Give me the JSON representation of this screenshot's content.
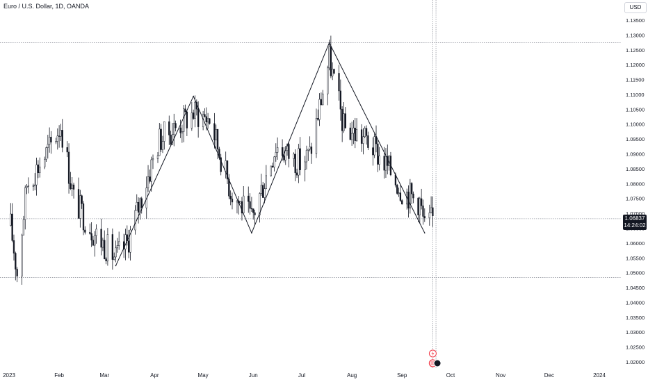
{
  "header": {
    "symbol_title": "Euro / U.S. Dollar, 1D, OANDA",
    "currency_label": "USD"
  },
  "price_tag": {
    "price": "1.06837",
    "countdown": "14:24:02"
  },
  "colors": {
    "candle": "#131722",
    "background": "#ffffff",
    "grid_line": "#9598a1",
    "zigzag": "#131722"
  },
  "chart_data": {
    "type": "candlestick",
    "title": "Euro / U.S. Dollar, 1D, OANDA",
    "xlabel": "",
    "ylabel": "",
    "grid": false,
    "y_axis_position": "right",
    "ylim": [
      1.0165,
      1.1385
    ],
    "xlim": [
      "2023-01-01",
      "2024-01-03"
    ],
    "y_ticks": [
      "1.02000",
      "1.02500",
      "1.03000",
      "1.03500",
      "1.04000",
      "1.04500",
      "1.05000",
      "1.05500",
      "1.06000",
      "1.06500",
      "1.07000",
      "1.07500",
      "1.08000",
      "1.08500",
      "1.09000",
      "1.09500",
      "1.10000",
      "1.10500",
      "1.11000",
      "1.11500",
      "1.12000",
      "1.12500",
      "1.13000",
      "1.13500"
    ],
    "x_ticks": [
      {
        "label": "2023",
        "date": "2023-01-01"
      },
      {
        "label": "Feb",
        "date": "2023-02-01"
      },
      {
        "label": "Mar",
        "date": "2023-03-01"
      },
      {
        "label": "Apr",
        "date": "2023-04-01"
      },
      {
        "label": "May",
        "date": "2023-05-01"
      },
      {
        "label": "Jun",
        "date": "2023-06-01"
      },
      {
        "label": "Jul",
        "date": "2023-07-01"
      },
      {
        "label": "Aug",
        "date": "2023-08-01"
      },
      {
        "label": "Sep",
        "date": "2023-09-01"
      },
      {
        "label": "Oct",
        "date": "2023-10-01"
      },
      {
        "label": "Nov",
        "date": "2023-11-01"
      },
      {
        "label": "Dec",
        "date": "2023-12-01"
      },
      {
        "label": "2024",
        "date": "2024-01-01"
      }
    ],
    "horizontal_levels": [
      1.1275,
      1.0683,
      1.0485
    ],
    "vertical_markers": [
      "2023-09-20",
      "2023-09-22"
    ],
    "zigzag": [
      {
        "date": "2023-03-08",
        "price": 1.0525
      },
      {
        "date": "2023-04-25",
        "price": 1.1095
      },
      {
        "date": "2023-05-31",
        "price": 1.0635
      },
      {
        "date": "2023-07-18",
        "price": 1.1275
      },
      {
        "date": "2023-09-15",
        "price": 1.0635
      }
    ],
    "anchor_points": [
      {
        "date": "2023-01-02",
        "close": 1.066
      },
      {
        "date": "2023-01-06",
        "close": 1.05
      },
      {
        "date": "2023-01-12",
        "close": 1.08
      },
      {
        "date": "2023-01-26",
        "close": 1.092
      },
      {
        "date": "2023-02-02",
        "close": 1.1
      },
      {
        "date": "2023-02-10",
        "close": 1.075
      },
      {
        "date": "2023-02-22",
        "close": 1.064
      },
      {
        "date": "2023-03-08",
        "close": 1.055
      },
      {
        "date": "2023-03-15",
        "close": 1.06
      },
      {
        "date": "2023-04-04",
        "close": 1.095
      },
      {
        "date": "2023-04-14",
        "close": 1.099
      },
      {
        "date": "2023-04-25",
        "close": 1.104
      },
      {
        "date": "2023-05-05",
        "close": 1.102
      },
      {
        "date": "2023-05-18",
        "close": 1.078
      },
      {
        "date": "2023-05-31",
        "close": 1.068
      },
      {
        "date": "2023-06-15",
        "close": 1.093
      },
      {
        "date": "2023-06-30",
        "close": 1.087
      },
      {
        "date": "2023-07-06",
        "close": 1.09
      },
      {
        "date": "2023-07-18",
        "close": 1.122
      },
      {
        "date": "2023-07-27",
        "close": 1.099
      },
      {
        "date": "2023-08-10",
        "close": 1.095
      },
      {
        "date": "2023-08-24",
        "close": 1.085
      },
      {
        "date": "2023-09-01",
        "close": 1.078
      },
      {
        "date": "2023-09-12",
        "close": 1.074
      },
      {
        "date": "2023-09-15",
        "close": 1.065
      },
      {
        "date": "2023-09-20",
        "close": 1.0684
      }
    ]
  },
  "event_markers": [
    {
      "icon": "lightning-icon",
      "date": "2023-09-20"
    },
    {
      "icon": "us-flag-icon",
      "date": "2023-09-20"
    },
    {
      "icon": "eu-flag-icon",
      "date": "2023-09-22"
    }
  ]
}
